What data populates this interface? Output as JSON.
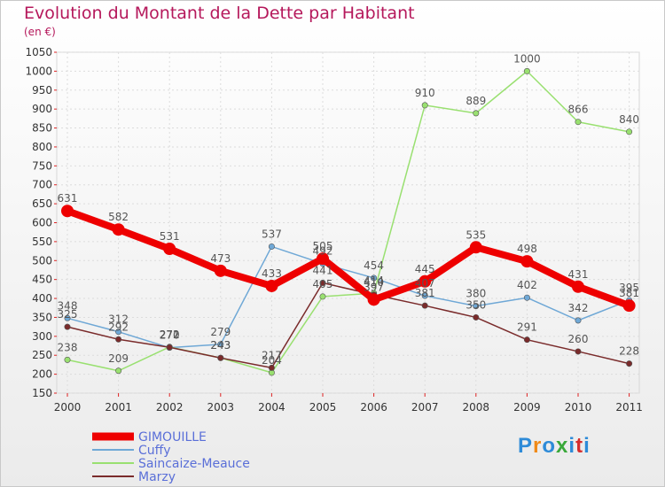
{
  "header": {
    "title": "Evolution du Montant de la Dette par Habitant",
    "subtitle": "(en €)"
  },
  "logo": {
    "text": "Proxiti",
    "colors": [
      "#2e8bd8",
      "#f08a18",
      "#2e8bd8",
      "#3aa83a",
      "#2e8bd8",
      "#d62d2d",
      "#2e8bd8"
    ]
  },
  "chart_data": {
    "type": "line",
    "title": "Evolution du Montant de la Dette par Habitant",
    "subtitle": "(en €)",
    "xlabel": "",
    "ylabel": "",
    "categories": [
      "2000",
      "2001",
      "2002",
      "2003",
      "2004",
      "2005",
      "2006",
      "2007",
      "2008",
      "2009",
      "2010",
      "2011"
    ],
    "ylim": [
      150,
      1050
    ],
    "yticks": [
      150,
      200,
      250,
      300,
      350,
      400,
      450,
      500,
      550,
      600,
      650,
      700,
      750,
      800,
      850,
      900,
      950,
      1000,
      1050
    ],
    "grid": true,
    "legend_position": "bottom-left",
    "series": [
      {
        "name": "GIMOUILLE",
        "color": "#ee0000",
        "emphasis": true,
        "values": [
          631,
          582,
          531,
          473,
          433,
          505,
          397,
          445,
          535,
          498,
          431,
          381
        ]
      },
      {
        "name": "Cuffy",
        "color": "#6fa8d6",
        "emphasis": false,
        "values": [
          348,
          312,
          270,
          279,
          537,
          492,
          454,
          407,
          380,
          402,
          342,
          395
        ]
      },
      {
        "name": "Saincaize-Meauce",
        "color": "#99e070",
        "emphasis": false,
        "values": [
          238,
          209,
          272,
          243,
          204,
          405,
          414,
          910,
          889,
          1000,
          866,
          840
        ]
      },
      {
        "name": "Marzy",
        "color": "#7a2b2b",
        "emphasis": false,
        "values": [
          325,
          292,
          271,
          243,
          217,
          441,
          410,
          381,
          350,
          291,
          260,
          228
        ]
      }
    ]
  }
}
